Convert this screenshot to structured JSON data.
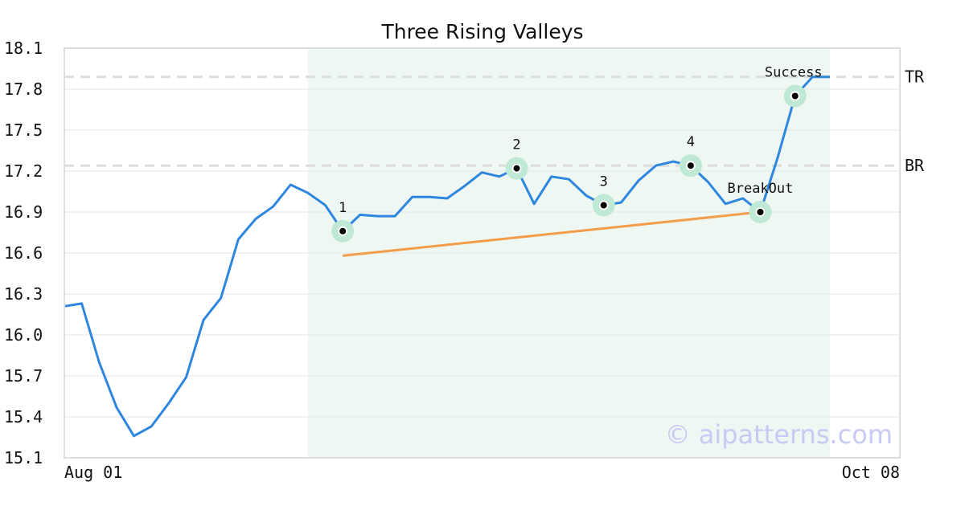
{
  "chart_data": {
    "type": "line",
    "title": "Three Rising Valleys",
    "xlabel": "",
    "ylabel": "",
    "ylim": [
      15.1,
      18.1
    ],
    "yticks": [
      "18.1",
      "17.8",
      "17.5",
      "17.2",
      "16.9",
      "16.6",
      "16.3",
      "16.0",
      "15.7",
      "15.4",
      "15.1"
    ],
    "x_start_label": "Aug 01",
    "x_end_label": "Oct 08",
    "grid": "horizontal",
    "colors": {
      "price": "#2e86de",
      "trend": "#f39c4a",
      "pattern_zone": "#eef7f2",
      "marker_halo": "#bfe9d4",
      "level_line": "#dddddd",
      "watermark": "#c9c9f5"
    },
    "series": [
      {
        "values": [
          16.21,
          16.23,
          15.8,
          15.47,
          15.26,
          15.33,
          15.5,
          15.69,
          16.11,
          16.27,
          16.7,
          16.85,
          16.94,
          17.1,
          17.04,
          16.95,
          16.76,
          16.88,
          16.87,
          16.87,
          17.01,
          17.01,
          17.0,
          17.09,
          17.19,
          17.16,
          17.22,
          16.96,
          17.16,
          17.14,
          17.02,
          16.95,
          16.97,
          17.13,
          17.24,
          17.27,
          17.24,
          17.12,
          16.96,
          17.0,
          16.9,
          17.3,
          17.75,
          17.89,
          17.89
        ]
      }
    ],
    "pattern_zone": {
      "start": 14,
      "end": 44
    },
    "levels": [
      {
        "label": "TR",
        "value": 17.89
      },
      {
        "label": "BR",
        "value": 17.24
      }
    ],
    "trendline": {
      "start": [
        16,
        16.58
      ],
      "end": [
        40,
        16.9
      ]
    },
    "annotations": [
      {
        "label": "1",
        "index": 16,
        "value": 16.76
      },
      {
        "label": "2",
        "index": 26,
        "value": 17.22
      },
      {
        "label": "3",
        "index": 31,
        "value": 16.95
      },
      {
        "label": "4",
        "index": 36,
        "value": 17.24
      },
      {
        "label": "BreakOut",
        "index": 40,
        "value": 16.9
      },
      {
        "label": "Success",
        "index": 42,
        "value": 17.75
      }
    ],
    "watermark": "© aipatterns.com"
  }
}
